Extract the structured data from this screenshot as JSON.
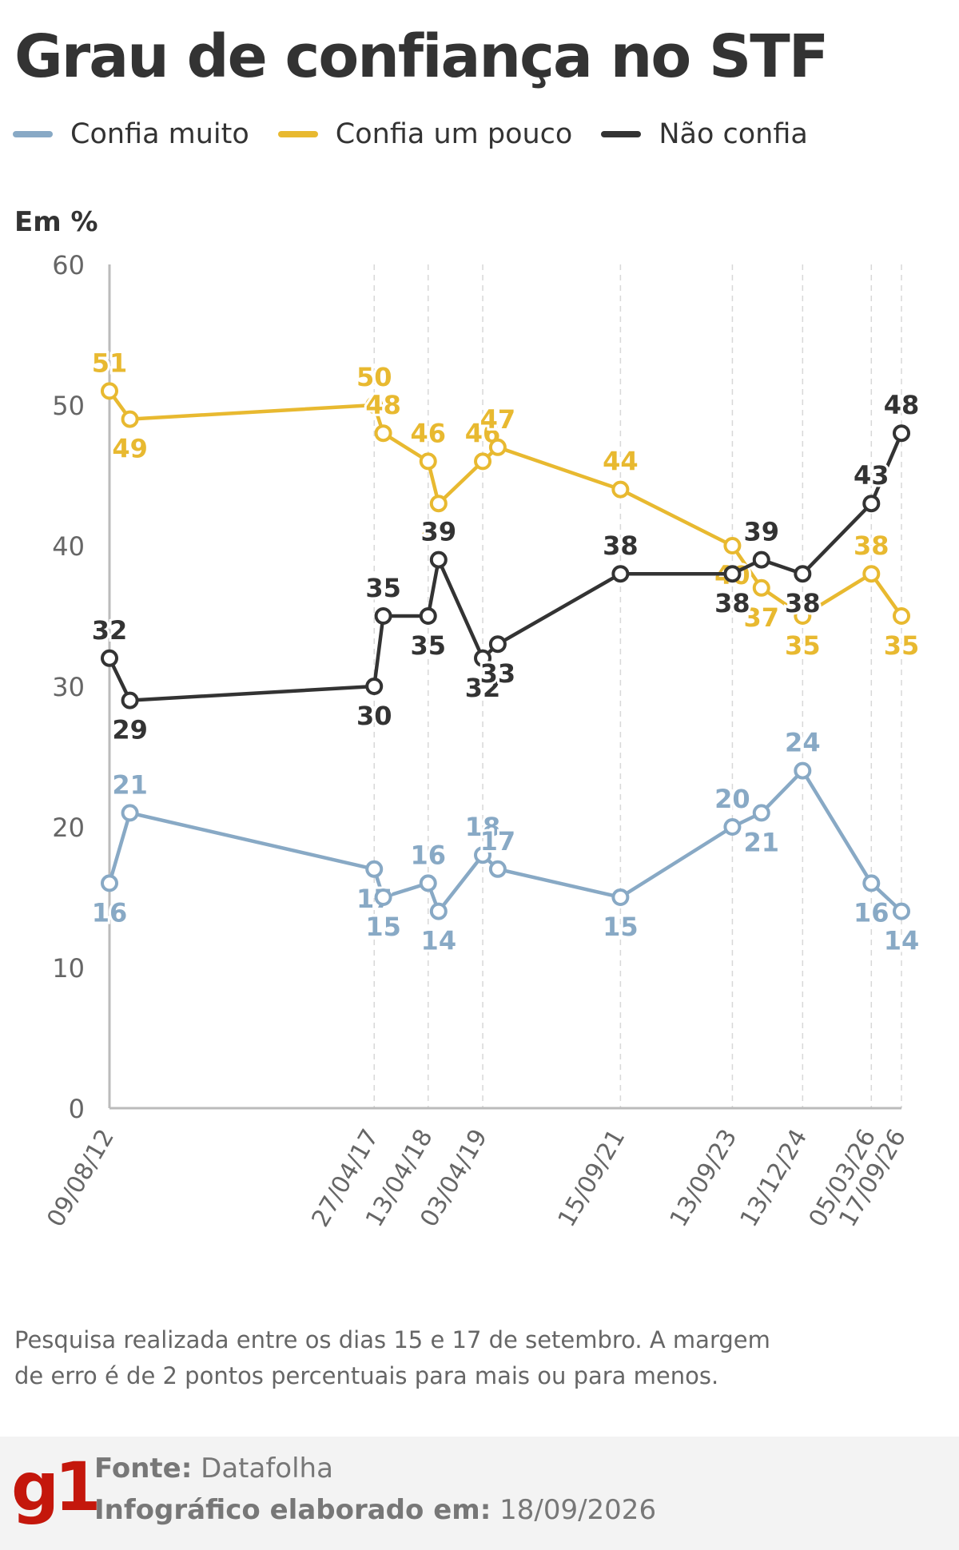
{
  "header": {
    "title": "Grau de confiança no STF",
    "unit_label": "Em %"
  },
  "colors": {
    "confia_muito": "#88a9c5",
    "confia_um_pouco": "#e8b930",
    "nao_confia": "#333333",
    "axis": "#bbbbbb",
    "tick_text": "#666666",
    "brand_red": "#c4170c"
  },
  "chart_data": {
    "type": "line",
    "ylabel": "Em %",
    "ylim": [
      0,
      60
    ],
    "yticks": [
      0,
      10,
      20,
      30,
      40,
      50,
      60
    ],
    "grid": "vertical dashed lines at labeled dates",
    "legend_position": "top-left",
    "x": [
      "2012-08-09",
      "2012-12-20",
      "2017-04-27",
      "2017-06-25",
      "2018-04-13",
      "2018-06-20",
      "2019-04-03",
      "2019-07-10",
      "2021-09-15",
      "2023-09-13",
      "2024-03-20",
      "2024-12-13",
      "2026-03-05",
      "2026-09-17"
    ],
    "xtick_labels": [
      {
        "date": "2012-08-09",
        "label": "09/08/12"
      },
      {
        "date": "2017-04-27",
        "label": "27/04/17"
      },
      {
        "date": "2018-04-13",
        "label": "13/04/18"
      },
      {
        "date": "2019-04-03",
        "label": "03/04/19"
      },
      {
        "date": "2021-09-15",
        "label": "15/09/21"
      },
      {
        "date": "2023-09-13",
        "label": "13/09/23"
      },
      {
        "date": "2024-12-13",
        "label": "13/12/24"
      },
      {
        "date": "2026-03-05",
        "label": "05/03/26"
      },
      {
        "date": "2026-09-17",
        "label": "17/09/26"
      }
    ],
    "series": [
      {
        "name": "Confia muito",
        "values": [
          16,
          21,
          17,
          15,
          16,
          14,
          18,
          17,
          15,
          20,
          21,
          24,
          16,
          14
        ]
      },
      {
        "name": "Confia um pouco",
        "values": [
          51,
          49,
          50,
          48,
          46,
          43,
          46,
          47,
          44,
          40,
          37,
          35,
          38,
          35
        ]
      },
      {
        "name": "Não confia",
        "values": [
          32,
          29,
          30,
          35,
          35,
          39,
          32,
          33,
          38,
          38,
          39,
          38,
          43,
          48
        ]
      }
    ]
  },
  "note": "Pesquisa realizada entre os dias 15 e 17 de setembro. A margem de erro é de 2 pontos percentuais para mais ou para menos.",
  "footer": {
    "logo": "g1",
    "source_label": "Fonte:",
    "source_value": "Datafolha",
    "made_label": "Infográfico elaborado em:",
    "made_value": "18/09/2026"
  }
}
